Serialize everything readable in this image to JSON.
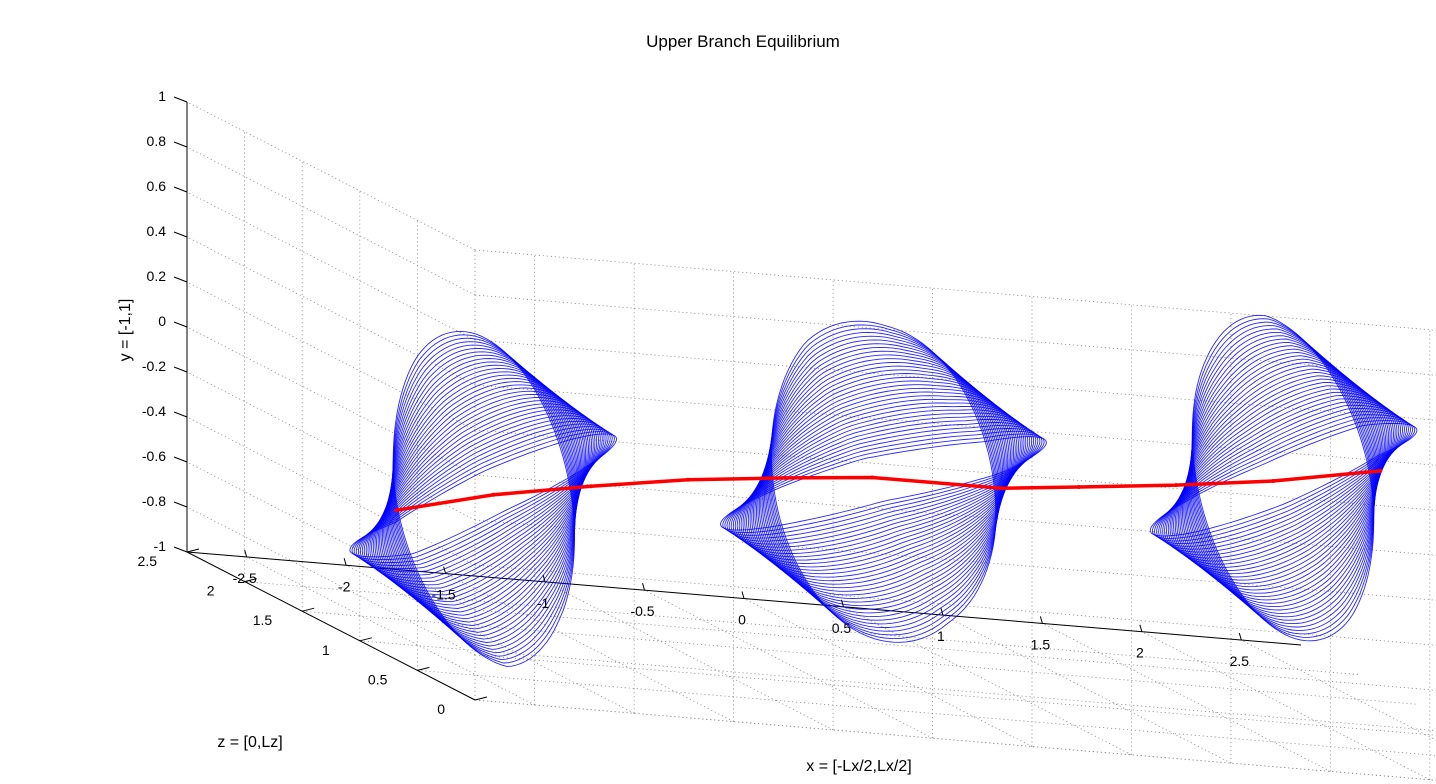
{
  "chart_data": {
    "type": "line",
    "projection": "3d",
    "title": "Upper Branch Equilibrium",
    "xlabel": "x = [-Lx/2,Lx/2]",
    "ylabel": "y = [-1,1]",
    "zlabel": "z = [0,Lz]",
    "xlim": [
      -2.8,
      2.8
    ],
    "ylim": [
      -1,
      1
    ],
    "zlim": [
      0,
      2.5
    ],
    "grid": true,
    "x_ticks": [
      -2.5,
      -2,
      -1.5,
      -1,
      -0.5,
      0,
      0.5,
      1,
      1.5,
      2,
      2.5
    ],
    "x_tick_labels": [
      "-2.5",
      "-2",
      "-1.5",
      "-1",
      "-0.5",
      "0",
      "0.5",
      "1",
      "1.5",
      "2",
      "2.5"
    ],
    "y_ticks": [
      -1,
      -0.8,
      -0.6,
      -0.4,
      -0.2,
      0,
      0.2,
      0.4,
      0.6,
      0.8,
      1
    ],
    "y_tick_labels": [
      "-1",
      "-0.8",
      "-0.6",
      "-0.4",
      "-0.2",
      "0",
      "0.2",
      "0.4",
      "0.6",
      "0.8",
      "1"
    ],
    "z_ticks": [
      0,
      0.5,
      1,
      1.5,
      2,
      2.5
    ],
    "z_tick_labels": [
      "0",
      "0.5",
      "1",
      "1.5",
      "2",
      "2.5"
    ],
    "series": [
      {
        "role": "streamlines",
        "color": "#0000ff",
        "vortex_tubes": [
          {
            "x_range": [
              -2.8,
              -1.3
            ],
            "y_amp": 0.42
          },
          {
            "x_range": [
              -0.9,
              0.9
            ],
            "y_amp": 0.46
          },
          {
            "x_range": [
              1.3,
              2.8
            ],
            "y_amp": 0.42
          }
        ]
      },
      {
        "role": "vortex_core",
        "color": "#ff0000",
        "x": [
          -2.5,
          -2.0,
          -1.5,
          -1.0,
          -0.5,
          -0.05,
          0.6,
          1.0,
          1.5,
          2.0,
          2.55
        ],
        "y": [
          -0.45,
          -0.35,
          -0.28,
          -0.22,
          -0.18,
          -0.15,
          -0.15,
          -0.12,
          -0.08,
          -0.03,
          0.05
        ],
        "z": [
          1.2,
          1.22,
          1.24,
          1.26,
          1.28,
          1.3,
          1.3,
          1.32,
          1.34,
          1.36,
          1.38
        ]
      }
    ]
  }
}
